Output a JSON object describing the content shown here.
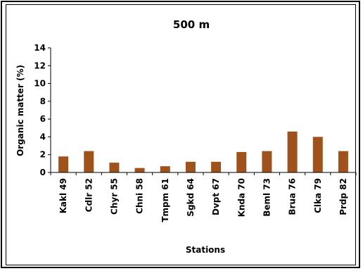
{
  "chart_data": {
    "type": "bar",
    "title": "500 m",
    "xlabel": "Stations",
    "ylabel": "Organic matter (%)",
    "ylim": [
      0,
      14
    ],
    "yticks": [
      "0",
      "2",
      "4",
      "6",
      "8",
      "10",
      "12",
      "14"
    ],
    "categories": [
      "Kakl 49",
      "Cdlr 52",
      "Chyr 55",
      "Chni 58",
      "Tmpm 61",
      "Sgkd 64",
      "Dvpt 67",
      "Knda 70",
      "Beml 73",
      "Brua 76",
      "Clka 79",
      "Prdp 82"
    ],
    "values": [
      1.8,
      2.4,
      1.1,
      0.5,
      0.7,
      1.2,
      1.2,
      2.3,
      2.4,
      4.6,
      4.0,
      2.4
    ],
    "bar_color": "#A0521C",
    "grid": false,
    "legend": "none"
  }
}
